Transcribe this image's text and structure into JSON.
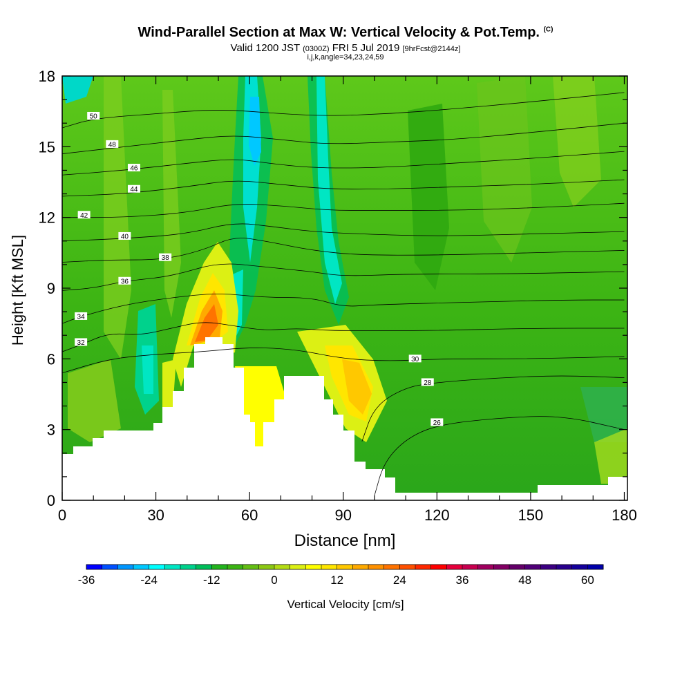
{
  "header": {
    "title": "Wind-Parallel Section at Max W: Vertical Velocity & Pot.Temp.",
    "title_mark": "(C)",
    "valid_prefix": "Valid 1200 JST",
    "valid_utc": "(0300Z)",
    "valid_date": "FRI 5 Jul 2019",
    "forecast": "[9hrFcst@2144z]",
    "grid_info": "i,j,k,angle=34,23,24,59"
  },
  "chart_data": {
    "type": "heatmap",
    "xlabel": "Distance [nm]",
    "ylabel": "Height [Kft MSL]",
    "xlim": [
      0,
      181
    ],
    "ylim": [
      0,
      18
    ],
    "xticks": [
      0,
      30,
      60,
      90,
      120,
      150,
      180
    ],
    "yticks": [
      0,
      3,
      6,
      9,
      12,
      15,
      18
    ],
    "colorbar": {
      "label": "Vertical Velocity [cm/s]",
      "min": -36,
      "max": 63,
      "step": 3,
      "tick_values": [
        -36,
        -24,
        -12,
        0,
        12,
        24,
        36,
        48,
        60
      ],
      "colors": [
        "#0000ff",
        "#0050ff",
        "#0096ff",
        "#00c8ff",
        "#00ffff",
        "#00e6c3",
        "#00d28c",
        "#00be5a",
        "#23b41e",
        "#3cb414",
        "#64be14",
        "#8cc814",
        "#b4dc14",
        "#dcf014",
        "#ffff00",
        "#ffe600",
        "#ffc800",
        "#ffaa00",
        "#ff9100",
        "#ff7300",
        "#ff5000",
        "#ff2800",
        "#ff0000",
        "#e6003c",
        "#c80050",
        "#a0005f",
        "#820064",
        "#640069",
        "#500078",
        "#3c0082",
        "#28008c",
        "#14009b",
        "#0000aa"
      ]
    },
    "theta_contours": [
      {
        "value": 26,
        "label": "26",
        "points": [
          [
            100,
            0.2
          ],
          [
            103,
            1.6
          ],
          [
            110,
            2.6
          ],
          [
            120,
            3.2
          ],
          [
            140,
            3.5
          ],
          [
            160,
            3.6
          ],
          [
            180,
            3.0
          ]
        ],
        "label_at": [
          120,
          3.3
        ]
      },
      {
        "value": 28,
        "label": "28",
        "points": [
          [
            96,
            2.5
          ],
          [
            100,
            4.0
          ],
          [
            110,
            4.8
          ],
          [
            120,
            5.0
          ],
          [
            140,
            5.2
          ],
          [
            160,
            5.3
          ],
          [
            180,
            5.2
          ]
        ],
        "label_at": [
          117,
          5.0
        ]
      },
      {
        "value": 30,
        "label": "30",
        "points": [
          [
            0,
            5.4
          ],
          [
            15,
            6.0
          ],
          [
            30,
            6.2
          ],
          [
            45,
            6.3
          ],
          [
            60,
            6.5
          ],
          [
            75,
            6.4
          ],
          [
            90,
            6.0
          ],
          [
            105,
            5.9
          ],
          [
            120,
            6.0
          ],
          [
            150,
            6.0
          ],
          [
            180,
            6.1
          ]
        ],
        "label_at": [
          113,
          6.0
        ]
      },
      {
        "value": 32,
        "label": "32",
        "points": [
          [
            0,
            6.3
          ],
          [
            6,
            6.6
          ],
          [
            15,
            7.1
          ],
          [
            25,
            7.0
          ],
          [
            35,
            7.3
          ],
          [
            45,
            7.6
          ],
          [
            55,
            7.4
          ],
          [
            65,
            7.2
          ],
          [
            75,
            7.3
          ],
          [
            85,
            7.2
          ],
          [
            100,
            7.2
          ],
          [
            120,
            7.2
          ],
          [
            150,
            7.3
          ],
          [
            180,
            7.3
          ]
        ],
        "label_at": [
          6,
          6.7
        ]
      },
      {
        "value": 34,
        "label": "34",
        "points": [
          [
            0,
            7.5
          ],
          [
            6,
            7.8
          ],
          [
            20,
            8.3
          ],
          [
            35,
            8.6
          ],
          [
            50,
            8.8
          ],
          [
            65,
            8.6
          ],
          [
            80,
            8.6
          ],
          [
            90,
            8.2
          ],
          [
            100,
            8.3
          ],
          [
            130,
            8.4
          ],
          [
            160,
            8.5
          ],
          [
            180,
            8.5
          ]
        ],
        "label_at": [
          6,
          7.8
        ]
      },
      {
        "value": 36,
        "label": "36",
        "points": [
          [
            0,
            8.9
          ],
          [
            10,
            9.0
          ],
          [
            20,
            9.3
          ],
          [
            35,
            9.5
          ],
          [
            50,
            10.1
          ],
          [
            65,
            9.9
          ],
          [
            80,
            9.7
          ],
          [
            90,
            9.5
          ],
          [
            110,
            9.6
          ],
          [
            140,
            9.6
          ],
          [
            180,
            9.7
          ]
        ],
        "label_at": [
          20,
          9.3
        ]
      },
      {
        "value": 38,
        "label": "38",
        "points": [
          [
            0,
            10.1
          ],
          [
            15,
            10.2
          ],
          [
            32,
            10.2
          ],
          [
            45,
            10.6
          ],
          [
            55,
            11.2
          ],
          [
            65,
            11.0
          ],
          [
            80,
            10.6
          ],
          [
            95,
            10.4
          ],
          [
            120,
            10.4
          ],
          [
            150,
            10.5
          ],
          [
            180,
            10.6
          ]
        ],
        "label_at": [
          33,
          10.3
        ]
      },
      {
        "value": 40,
        "label": "40",
        "points": [
          [
            0,
            11.0
          ],
          [
            20,
            11.1
          ],
          [
            40,
            11.3
          ],
          [
            55,
            11.8
          ],
          [
            68,
            11.6
          ],
          [
            80,
            11.4
          ],
          [
            95,
            11.3
          ],
          [
            120,
            11.2
          ],
          [
            150,
            11.3
          ],
          [
            180,
            11.4
          ]
        ],
        "label_at": [
          20,
          11.2
        ]
      },
      {
        "value": 42,
        "label": "42",
        "points": [
          [
            0,
            12.0
          ],
          [
            20,
            12.0
          ],
          [
            40,
            12.2
          ],
          [
            55,
            12.6
          ],
          [
            70,
            12.5
          ],
          [
            85,
            12.3
          ],
          [
            100,
            12.3
          ],
          [
            125,
            12.3
          ],
          [
            150,
            12.4
          ],
          [
            180,
            12.6
          ]
        ],
        "label_at": [
          7,
          12.1
        ]
      },
      {
        "value": 44,
        "label": "44",
        "points": [
          [
            0,
            12.9
          ],
          [
            20,
            13.0
          ],
          [
            40,
            13.3
          ],
          [
            55,
            13.6
          ],
          [
            70,
            13.4
          ],
          [
            85,
            13.2
          ],
          [
            105,
            13.2
          ],
          [
            125,
            13.3
          ],
          [
            150,
            13.4
          ],
          [
            180,
            13.6
          ]
        ],
        "label_at": [
          23,
          13.2
        ]
      },
      {
        "value": 46,
        "label": "46",
        "points": [
          [
            0,
            13.8
          ],
          [
            20,
            14.0
          ],
          [
            40,
            14.3
          ],
          [
            55,
            14.5
          ],
          [
            66,
            14.3
          ],
          [
            80,
            14.1
          ],
          [
            100,
            14.1
          ],
          [
            125,
            14.3
          ],
          [
            150,
            14.5
          ],
          [
            180,
            14.8
          ]
        ],
        "label_at": [
          23,
          14.1
        ]
      },
      {
        "value": 48,
        "label": "48",
        "points": [
          [
            0,
            14.7
          ],
          [
            20,
            15.0
          ],
          [
            40,
            15.3
          ],
          [
            55,
            15.5
          ],
          [
            70,
            15.3
          ],
          [
            85,
            15.1
          ],
          [
            105,
            15.2
          ],
          [
            125,
            15.3
          ],
          [
            150,
            15.6
          ],
          [
            180,
            16.0
          ]
        ],
        "label_at": [
          16,
          15.1
        ]
      },
      {
        "value": 50,
        "label": "50",
        "points": [
          [
            0,
            15.8
          ],
          [
            10,
            16.2
          ],
          [
            30,
            16.4
          ],
          [
            50,
            16.6
          ],
          [
            70,
            16.4
          ],
          [
            85,
            16.3
          ],
          [
            105,
            16.4
          ],
          [
            125,
            16.6
          ],
          [
            150,
            16.9
          ],
          [
            180,
            17.3
          ]
        ],
        "label_at": [
          10,
          16.3
        ]
      }
    ]
  }
}
